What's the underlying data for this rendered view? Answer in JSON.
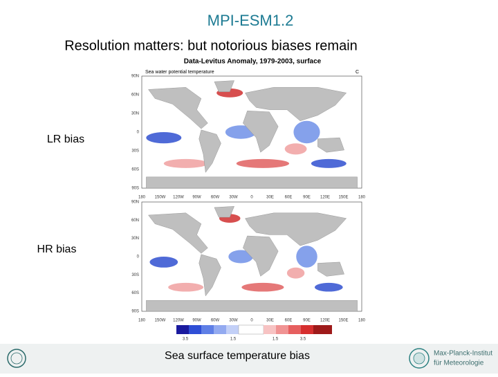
{
  "title": "MPI-ESM1.2",
  "subtitle": "Resolution matters: but notorious biases remain",
  "figure": {
    "header": "Data-Levitus Anomaly, 1979-2003, surface",
    "variable": "Sea water potential temperature",
    "unit": "C",
    "top_map": {
      "label": "LR bias",
      "lat_labels": [
        "90N",
        "60N",
        "30N",
        "0",
        "30S",
        "60S",
        "90S"
      ]
    },
    "bottom_map": {
      "label": "HR bias",
      "lat_labels": [
        "90N",
        "60N",
        "30N",
        "0",
        "30S",
        "60S",
        "90S"
      ]
    },
    "lon_labels": [
      "180",
      "150W",
      "120W",
      "90W",
      "60W",
      "30W",
      "0",
      "30E",
      "60E",
      "90E",
      "120E",
      "150E",
      "180"
    ],
    "colorbar_labels": [
      "3.5",
      "1.5",
      "1.5",
      "3.5"
    ]
  },
  "caption": "Sea surface temperature bias",
  "footer": {
    "institute_line1": "Max-Planck-Institut",
    "institute_line2": "für Meteorologie"
  }
}
